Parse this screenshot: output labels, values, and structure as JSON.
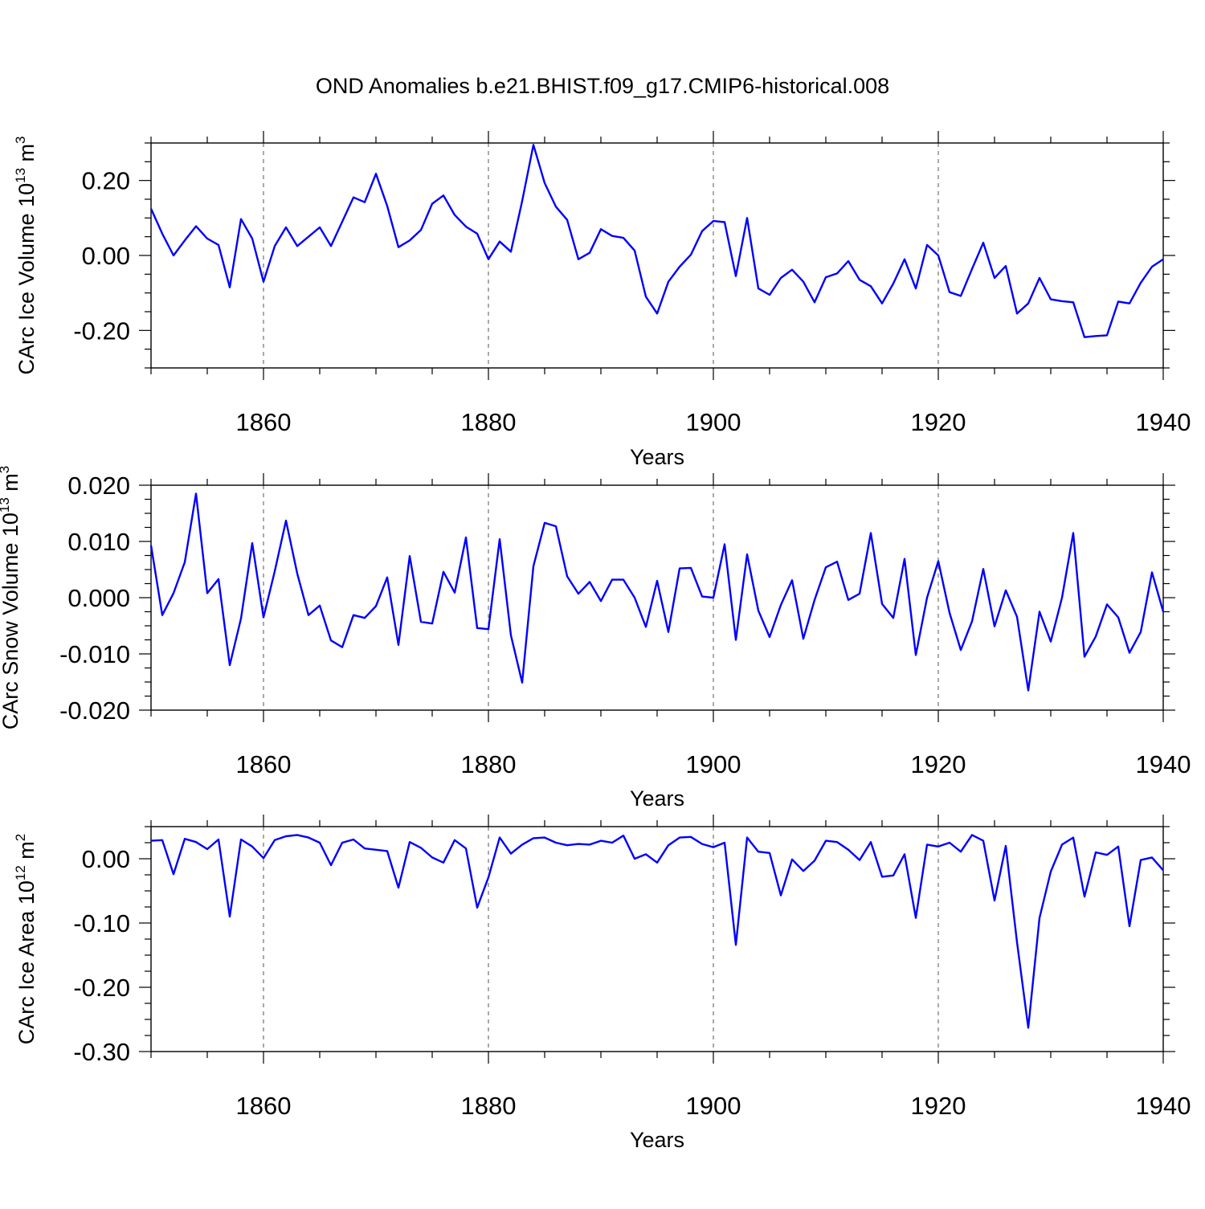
{
  "title": "OND Anomalies b.e21.BHIST.f09_g17.CMIP6-historical.008",
  "line_color": "#0000ff",
  "chart_data": [
    {
      "type": "line",
      "ylabel_text": "CArc Ice Volume 10",
      "ylabel_exp": "13",
      "ylabel_unit": " m",
      "ylabel_unit_exp": "3",
      "xlabel": "Years",
      "xlim": [
        1850,
        1940
      ],
      "ylim": [
        -0.3,
        0.3
      ],
      "xticks": [
        1860,
        1880,
        1900,
        1920,
        1940
      ],
      "xtick_labels": [
        "1860",
        "1880",
        "1900",
        "1920",
        "1940"
      ],
      "yticks": [
        0.2,
        0.0,
        -0.2
      ],
      "ytick_labels": [
        "0.20",
        "0.00",
        "-0.20"
      ],
      "yminor_step": 0.05,
      "grid_x": [
        1860,
        1880,
        1900,
        1920
      ],
      "x_start": 1850,
      "values": [
        0.125,
        0.058,
        0.0,
        0.04,
        0.078,
        0.045,
        0.028,
        -0.085,
        0.097,
        0.045,
        -0.07,
        0.025,
        0.075,
        0.025,
        0.05,
        0.075,
        0.025,
        0.09,
        0.155,
        0.142,
        0.218,
        0.132,
        0.022,
        0.04,
        0.068,
        0.138,
        0.16,
        0.108,
        0.077,
        0.058,
        -0.01,
        0.037,
        0.01,
        0.145,
        0.295,
        0.193,
        0.13,
        0.095,
        -0.01,
        0.007,
        0.07,
        0.052,
        0.047,
        0.013,
        -0.11,
        -0.155,
        -0.07,
        -0.03,
        0.002,
        0.065,
        0.092,
        0.089,
        -0.055,
        0.1,
        -0.088,
        -0.105,
        -0.06,
        -0.038,
        -0.07,
        -0.125,
        -0.058,
        -0.048,
        -0.015,
        -0.065,
        -0.082,
        -0.128,
        -0.075,
        -0.01,
        -0.088,
        0.028,
        0.0,
        -0.098,
        -0.108,
        -0.036,
        0.034,
        -0.06,
        -0.028,
        -0.155,
        -0.128,
        -0.06,
        -0.117,
        -0.122,
        -0.125,
        -0.218,
        -0.215,
        -0.213,
        -0.123,
        -0.128,
        -0.073,
        -0.03,
        -0.01
      ]
    },
    {
      "type": "line",
      "ylabel_text": "CArc Snow Volume 10",
      "ylabel_exp": "13",
      "ylabel_unit": " m",
      "ylabel_unit_exp": "3",
      "xlabel": "Years",
      "xlim": [
        1850,
        1940
      ],
      "ylim": [
        -0.02,
        0.02
      ],
      "xticks": [
        1860,
        1880,
        1900,
        1920,
        1940
      ],
      "xtick_labels": [
        "1860",
        "1880",
        "1900",
        "1920",
        "1940"
      ],
      "yticks": [
        0.02,
        0.01,
        0.0,
        -0.01,
        -0.02
      ],
      "ytick_labels": [
        "0.020",
        "0.010",
        "0.000",
        "-0.010",
        "-0.020"
      ],
      "yminor_step": 0.0025,
      "grid_x": [
        1860,
        1880,
        1900,
        1920
      ],
      "x_start": 1850,
      "values": [
        0.0093,
        -0.0031,
        0.0008,
        0.0063,
        0.0185,
        0.0008,
        0.0033,
        -0.012,
        -0.0037,
        0.0097,
        -0.0035,
        0.0047,
        0.0137,
        0.0043,
        -0.0031,
        -0.0014,
        -0.0076,
        -0.0088,
        -0.0031,
        -0.0036,
        -0.0015,
        0.0036,
        -0.0084,
        0.0074,
        -0.0043,
        -0.0046,
        0.0046,
        0.0009,
        0.0107,
        -0.0054,
        -0.0056,
        0.0104,
        -0.0067,
        -0.0151,
        0.0056,
        0.0133,
        0.0127,
        0.0038,
        0.0007,
        0.0028,
        -0.0006,
        0.0032,
        0.0032,
        0.0,
        -0.0052,
        0.003,
        -0.0061,
        0.0052,
        0.0053,
        0.0002,
        0.0,
        0.0095,
        -0.0075,
        0.0077,
        -0.0023,
        -0.007,
        -0.0013,
        0.0031,
        -0.0073,
        -0.0004,
        0.0054,
        0.0064,
        -0.0004,
        0.0007,
        0.0115,
        -0.0011,
        -0.0036,
        0.0069,
        -0.0102,
        0.0,
        0.0065,
        -0.0027,
        -0.0093,
        -0.0042,
        0.0051,
        -0.0051,
        0.0013,
        -0.0034,
        -0.0165,
        -0.0025,
        -0.0078,
        0.0,
        0.0115,
        -0.0105,
        -0.0069,
        -0.0012,
        -0.0035,
        -0.0098,
        -0.0061,
        0.0045,
        -0.0025
      ]
    },
    {
      "type": "line",
      "ylabel_text": "CArc Ice Area 10",
      "ylabel_exp": "12",
      "ylabel_unit": " m",
      "ylabel_unit_exp": "2",
      "xlabel": "Years",
      "xlim": [
        1850,
        1940
      ],
      "ylim": [
        -0.3,
        0.05
      ],
      "xticks": [
        1860,
        1880,
        1900,
        1920,
        1940
      ],
      "xtick_labels": [
        "1860",
        "1880",
        "1900",
        "1920",
        "1940"
      ],
      "yticks": [
        0.0,
        -0.1,
        -0.2,
        -0.3
      ],
      "ytick_labels": [
        "0.00",
        "-0.10",
        "-0.20",
        "-0.30"
      ],
      "yminor_step": 0.025,
      "grid_x": [
        1860,
        1880,
        1900,
        1920
      ],
      "x_start": 1850,
      "values": [
        0.028,
        0.029,
        -0.024,
        0.031,
        0.026,
        0.015,
        0.03,
        -0.09,
        0.03,
        0.019,
        0.001,
        0.029,
        0.035,
        0.037,
        0.033,
        0.025,
        -0.01,
        0.025,
        0.03,
        0.016,
        0.014,
        0.012,
        -0.045,
        0.026,
        0.017,
        0.002,
        -0.006,
        0.029,
        0.016,
        -0.076,
        -0.029,
        0.033,
        0.008,
        0.022,
        0.032,
        0.033,
        0.025,
        0.021,
        0.023,
        0.022,
        0.028,
        0.025,
        0.036,
        0.0,
        0.007,
        -0.006,
        0.021,
        0.033,
        0.034,
        0.023,
        0.018,
        0.025,
        -0.134,
        0.033,
        0.011,
        0.009,
        -0.057,
        -0.001,
        -0.019,
        -0.003,
        0.028,
        0.026,
        0.014,
        -0.002,
        0.026,
        -0.028,
        -0.026,
        0.007,
        -0.092,
        0.022,
        0.019,
        0.025,
        0.011,
        0.037,
        0.028,
        -0.065,
        0.02,
        -0.13,
        -0.263,
        -0.092,
        -0.02,
        0.022,
        0.033,
        -0.059,
        0.01,
        0.006,
        0.019,
        -0.105,
        -0.002,
        0.002,
        -0.018
      ]
    }
  ]
}
